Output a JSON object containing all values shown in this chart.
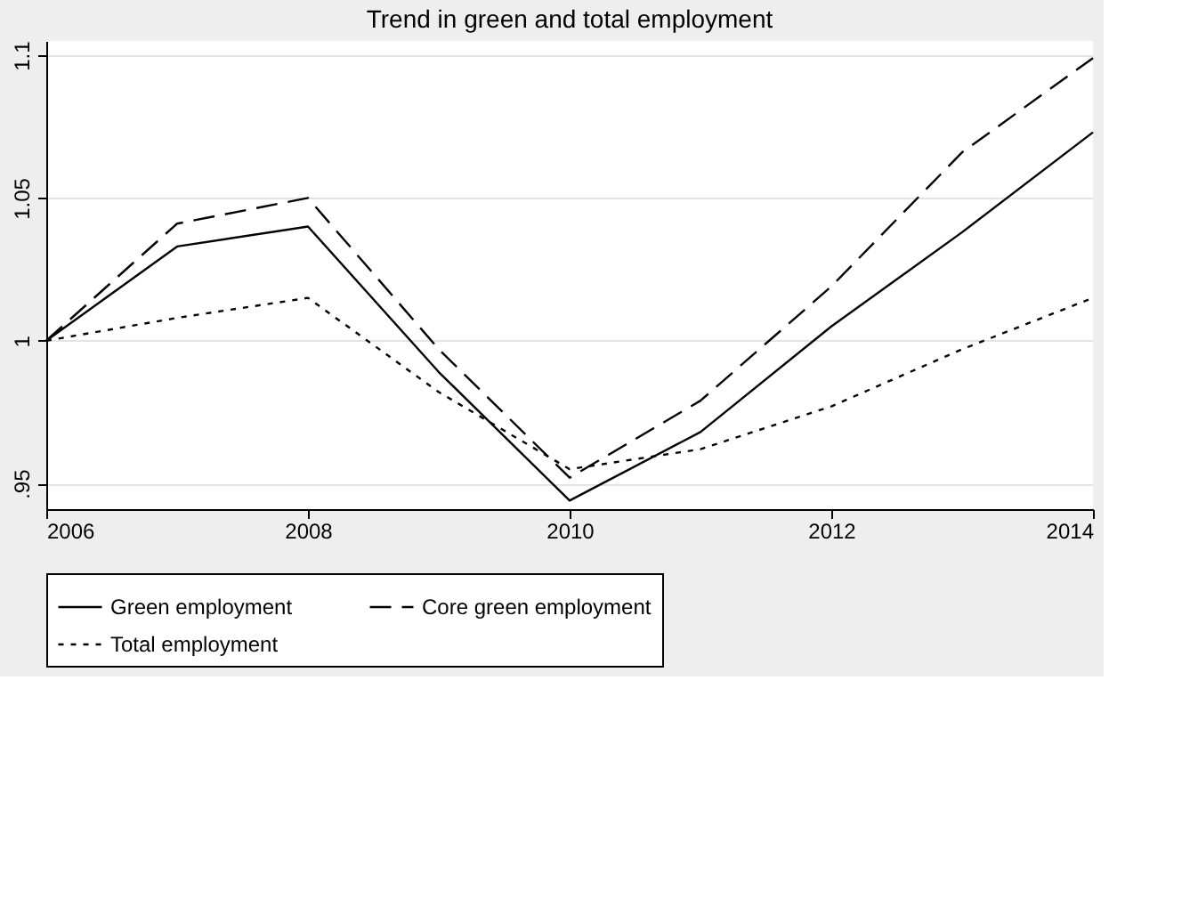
{
  "chart_data": {
    "type": "line",
    "title": "Trend in green and total employment",
    "x": [
      2006,
      2007,
      2008,
      2009,
      2010,
      2011,
      2012,
      2013,
      2014
    ],
    "series": [
      {
        "name": "Green employment",
        "color": "#000000",
        "line_style": "solid",
        "values": [
          1.0,
          1.033,
          1.04,
          0.989,
          0.944,
          0.968,
          1.005,
          1.038,
          1.073
        ]
      },
      {
        "name": "Core green employment",
        "color": "#000000",
        "line_style": "dashed",
        "values": [
          1.0,
          1.041,
          1.05,
          0.997,
          0.952,
          0.979,
          1.019,
          1.066,
          1.099
        ]
      },
      {
        "name": "Total employment",
        "color": "#000000",
        "line_style": "dotted",
        "values": [
          1.0,
          1.008,
          1.015,
          0.982,
          0.955,
          0.962,
          0.977,
          0.997,
          1.015
        ]
      }
    ],
    "xlim": [
      2006,
      2014
    ],
    "xticks": [
      2006,
      2008,
      2010,
      2012,
      2014
    ],
    "ylim": [
      0.941,
      1.105
    ],
    "yticks": [
      {
        "value": 0.95,
        "label": ".95"
      },
      1,
      1.05,
      1.1
    ],
    "grid": "y",
    "legend": "bottom",
    "marker": "none"
  }
}
